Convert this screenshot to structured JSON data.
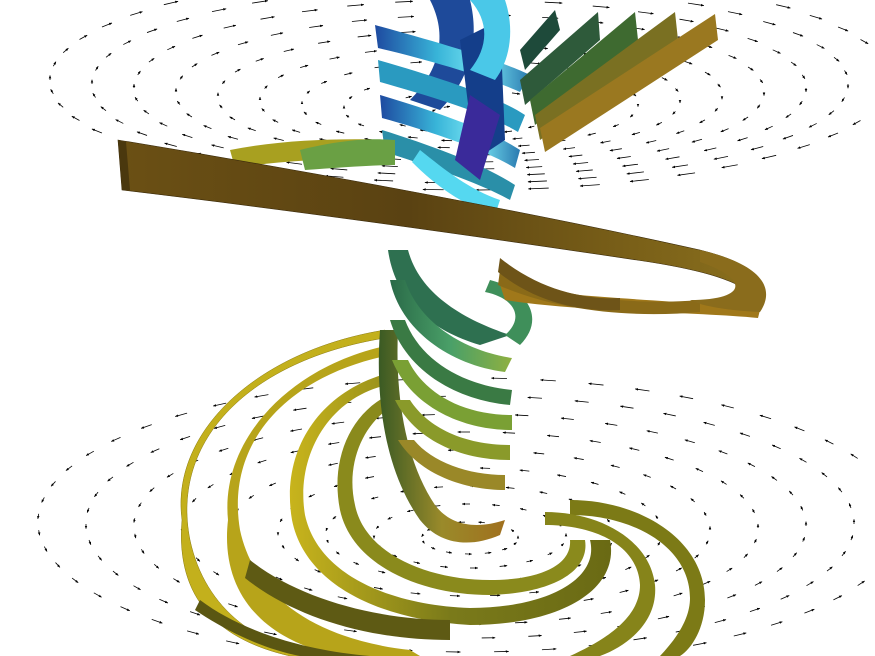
{
  "scene": {
    "description_free": true,
    "colors": {
      "background": "#ffffff",
      "arrow": "#000000",
      "brown_dark": "#4f3c14",
      "brown_mid": "#6e5518",
      "ochre": "#8a7420",
      "olive": "#8c8a1e",
      "yellow": "#c8b41c",
      "green": "#3f8f5a",
      "teal": "#2a8fa8",
      "cyan": "#55d8f0",
      "blue": "#1e5aa8",
      "indigo": "#3a2a9a"
    },
    "icons": [
      "vector-field-arrow",
      "streamribbon"
    ]
  }
}
